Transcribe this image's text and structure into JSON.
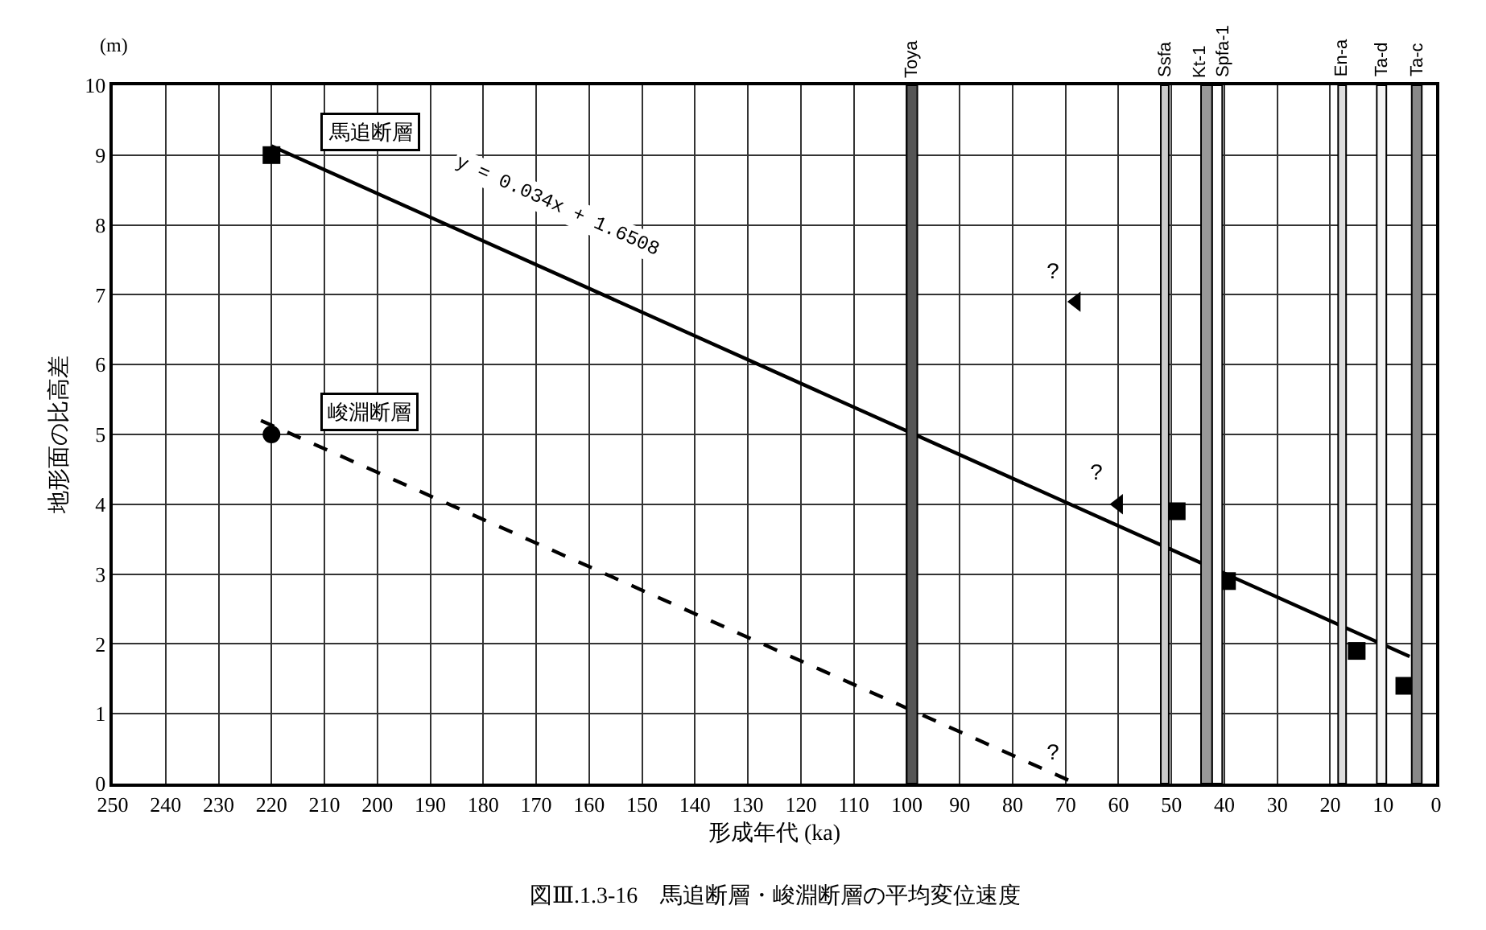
{
  "chart_data": {
    "type": "scatter",
    "title": "図Ⅲ.1.3-16　馬追断層・峻淵断層の平均変位速度",
    "xlabel": "形成年代 (ka)",
    "ylabel": "地形面の比高差",
    "xlim": [
      250,
      0
    ],
    "xticks": [
      250,
      240,
      230,
      220,
      210,
      200,
      190,
      180,
      170,
      160,
      150,
      140,
      130,
      120,
      110,
      100,
      90,
      80,
      70,
      60,
      50,
      40,
      30,
      20,
      10,
      0
    ],
    "ylim": [
      0,
      10
    ],
    "yticks": [
      0,
      1,
      2,
      3,
      4,
      5,
      6,
      7,
      8,
      9,
      10
    ],
    "grid": true,
    "legend": false,
    "series": [
      {
        "name": "馬追断層",
        "marker": "square",
        "color": "#000000",
        "x": [
          220,
          49,
          39.5,
          15,
          6
        ],
        "values": [
          9,
          3.9,
          2.9,
          1.9,
          1.4
        ]
      },
      {
        "name": "峻淵断層",
        "marker": "circle",
        "color": "#000000",
        "x": [
          220
        ],
        "values": [
          5
        ]
      },
      {
        "type": "line",
        "line_style": "solid",
        "color": "#000000",
        "x": [
          220,
          5
        ],
        "values": [
          9.13,
          1.82
        ]
      },
      {
        "type": "line",
        "line_style": "dashed",
        "color": "#000000",
        "x": [
          222,
          68
        ],
        "values": [
          5.2,
          0
        ]
      },
      {
        "marker": "triangle",
        "color": "#000000",
        "x": [
          68,
          60
        ],
        "values": [
          6.9,
          4.0
        ]
      }
    ],
    "bands": [
      {
        "axis": "x",
        "from": 100,
        "to": 98,
        "label": "Toya",
        "color": "#555555"
      },
      {
        "axis": "x",
        "from": 52,
        "to": 50.5,
        "label": "Ssfa",
        "color": "#cccccc"
      },
      {
        "axis": "x",
        "from": 44.4,
        "to": 42.3,
        "label": "Kt-1",
        "color": "#999999"
      },
      {
        "axis": "x",
        "from": 42.3,
        "to": 40.4,
        "label": "Spfa-1",
        "color": "#ffffff"
      },
      {
        "axis": "x",
        "from": 18.5,
        "to": 17,
        "label": "En-a",
        "color": "#dddddd"
      },
      {
        "axis": "x",
        "from": 11.2,
        "to": 9.4,
        "label": "Ta-d",
        "color": "#f4f4f4"
      },
      {
        "axis": "x",
        "from": 4.6,
        "to": 2.7,
        "label": "Ta-c",
        "color": "#888888"
      }
    ],
    "annotations": [
      "(m)",
      {
        "text": "y = 0.034x + 1.6508",
        "x": 166,
        "y": 7.29
      },
      {
        "text": "?",
        "x": 68,
        "y": 6.9
      },
      {
        "text": "?",
        "x": 60,
        "y": 4.0
      },
      {
        "text": "?",
        "x": 68,
        "y": 0
      }
    ]
  }
}
